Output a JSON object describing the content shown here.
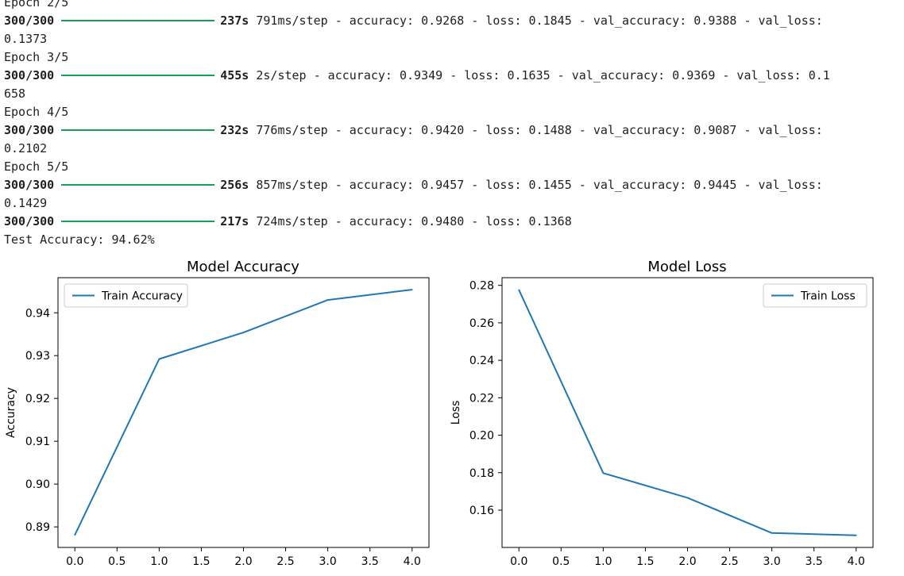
{
  "console": {
    "lines": [
      {
        "kind": "text",
        "text": "Epoch 2/5"
      },
      {
        "kind": "progress",
        "steps": "300/300",
        "time": "237s",
        "rest": "791ms/step - accuracy: 0.9268 - loss: 0.1845 - val_accuracy: 0.9388 - val_loss:"
      },
      {
        "kind": "text",
        "text": "0.1373"
      },
      {
        "kind": "text",
        "text": "Epoch 3/5"
      },
      {
        "kind": "progress",
        "steps": "300/300",
        "time": "455s",
        "rest": "2s/step - accuracy: 0.9349 - loss: 0.1635 - val_accuracy: 0.9369 - val_loss: 0.1"
      },
      {
        "kind": "text",
        "text": "658"
      },
      {
        "kind": "text",
        "text": "Epoch 4/5"
      },
      {
        "kind": "progress",
        "steps": "300/300",
        "time": "232s",
        "rest": "776ms/step - accuracy: 0.9420 - loss: 0.1488 - val_accuracy: 0.9087 - val_loss:"
      },
      {
        "kind": "text",
        "text": "0.2102"
      },
      {
        "kind": "text",
        "text": "Epoch 5/5"
      },
      {
        "kind": "progress",
        "steps": "300/300",
        "time": "256s",
        "rest": "857ms/step - accuracy: 0.9457 - loss: 0.1455 - val_accuracy: 0.9445 - val_loss:"
      },
      {
        "kind": "text",
        "text": "0.1429"
      },
      {
        "kind": "progress",
        "steps": "300/300",
        "time": "217s",
        "rest": "724ms/step - accuracy: 0.9480 - loss: 0.1368"
      },
      {
        "kind": "text",
        "text": "Test Accuracy: 94.62%"
      }
    ],
    "progress_fill": 1.0,
    "progress_color": "#14a05a"
  },
  "chart_data": [
    {
      "type": "line",
      "title": "Model Accuracy",
      "xlabel": "",
      "ylabel": "Accuracy",
      "x": [
        0,
        1,
        2,
        3,
        4
      ],
      "series": [
        {
          "name": "Train Accuracy",
          "values": [
            0.8881,
            0.9292,
            0.9354,
            0.943,
            0.9454
          ],
          "color": "#1f77b4"
        }
      ],
      "xlim": [
        -0.2,
        4.2
      ],
      "ylim": [
        0.8852,
        0.9482
      ],
      "xticks": [
        0,
        0.5,
        1,
        1.5,
        2,
        2.5,
        3,
        3.5,
        4
      ],
      "xtick_labels": [
        "0.0",
        "0.5",
        "1.0",
        "1.5",
        "2.0",
        "2.5",
        "3.0",
        "3.5",
        "4.0"
      ],
      "yticks": [
        0.89,
        0.9,
        0.91,
        0.92,
        0.93,
        0.94
      ],
      "ytick_labels": [
        "0.89",
        "0.90",
        "0.91",
        "0.92",
        "0.93",
        "0.94"
      ],
      "legend": "top-left",
      "grid": false
    },
    {
      "type": "line",
      "title": "Model Loss",
      "xlabel": "",
      "ylabel": "Loss",
      "x": [
        0,
        1,
        2,
        3,
        4
      ],
      "series": [
        {
          "name": "Train Loss",
          "values": [
            0.2776,
            0.1798,
            0.1666,
            0.1478,
            0.1466
          ],
          "color": "#1f77b4"
        }
      ],
      "xlim": [
        -0.2,
        4.2
      ],
      "ylim": [
        0.1401,
        0.2841
      ],
      "xticks": [
        0,
        0.5,
        1,
        1.5,
        2,
        2.5,
        3,
        3.5,
        4
      ],
      "xtick_labels": [
        "0.0",
        "0.5",
        "1.0",
        "1.5",
        "2.0",
        "2.5",
        "3.0",
        "3.5",
        "4.0"
      ],
      "yticks": [
        0.16,
        0.18,
        0.2,
        0.22,
        0.24,
        0.26,
        0.28
      ],
      "ytick_labels": [
        "0.16",
        "0.18",
        "0.20",
        "0.22",
        "0.24",
        "0.26",
        "0.28"
      ],
      "legend": "top-right",
      "grid": false
    }
  ]
}
